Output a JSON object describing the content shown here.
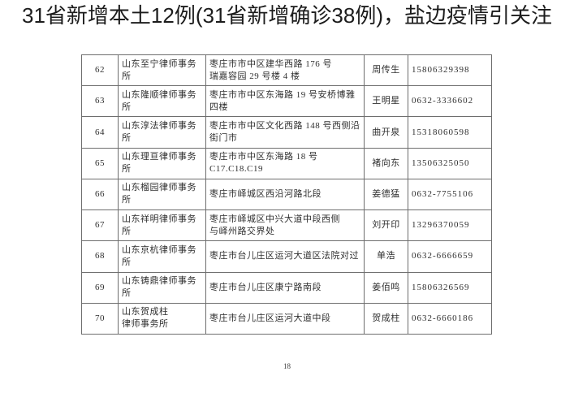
{
  "title": "31省新增本土12例(31省新增确诊38例)，盐边疫情引关注",
  "page_number": "18",
  "table": {
    "rows": [
      {
        "no": "62",
        "firm_line1": "山东至宁律师事务所",
        "firm_line2": "",
        "address_line1": "枣庄市市中区建华西路 176 号",
        "address_line2": "瑞嘉容园 29 号楼 4 楼",
        "contact": "周传生",
        "phone": "15806329398"
      },
      {
        "no": "63",
        "firm_line1": "山东隆顺律师事务所",
        "firm_line2": "",
        "address_line1": "枣庄市市中区东海路 19 号安桥博雅四楼",
        "address_line2": "",
        "contact": "王明星",
        "phone": "0632-3336602"
      },
      {
        "no": "64",
        "firm_line1": "山东淳法律师事务所",
        "firm_line2": "",
        "address_line1": "枣庄市市中区文化西路 148 号西侧沿街门市",
        "address_line2": "",
        "contact": "曲开泉",
        "phone": "15318060598"
      },
      {
        "no": "65",
        "firm_line1": "山东理亘律师事务所",
        "firm_line2": "",
        "address_line1": "枣庄市市中区东海路 18 号 C17.C18.C19",
        "address_line2": "",
        "contact": "褚向东",
        "phone": "13506325050"
      },
      {
        "no": "66",
        "firm_line1": "山东榴园律师事务所",
        "firm_line2": "",
        "address_line1": "枣庄市峄城区西沿河路北段",
        "address_line2": "",
        "contact": "姜德猛",
        "phone": "0632-7755106"
      },
      {
        "no": "67",
        "firm_line1": "山东祥明律师事务所",
        "firm_line2": "",
        "address_line1": "枣庄市峄城区中兴大道中段西侧",
        "address_line2": "与峄州路交界处",
        "contact": "刘开印",
        "phone": "13296370059"
      },
      {
        "no": "68",
        "firm_line1": "山东京杭律师事务所",
        "firm_line2": "",
        "address_line1": "枣庄市台儿庄区运河大道区法院对过",
        "address_line2": "",
        "contact": "单浩",
        "phone": "0632-6666659"
      },
      {
        "no": "69",
        "firm_line1": "山东铸鼎律师事务所",
        "firm_line2": "",
        "address_line1": "枣庄市台儿庄区康宁路南段",
        "address_line2": "",
        "contact": "姜佰鸣",
        "phone": "15806326569"
      },
      {
        "no": "70",
        "firm_line1": "山东贺成柱",
        "firm_line2": "律师事务所",
        "address_line1": "枣庄市台儿庄区运河大道中段",
        "address_line2": "",
        "contact": "贺成柱",
        "phone": "0632-6660186"
      }
    ]
  }
}
